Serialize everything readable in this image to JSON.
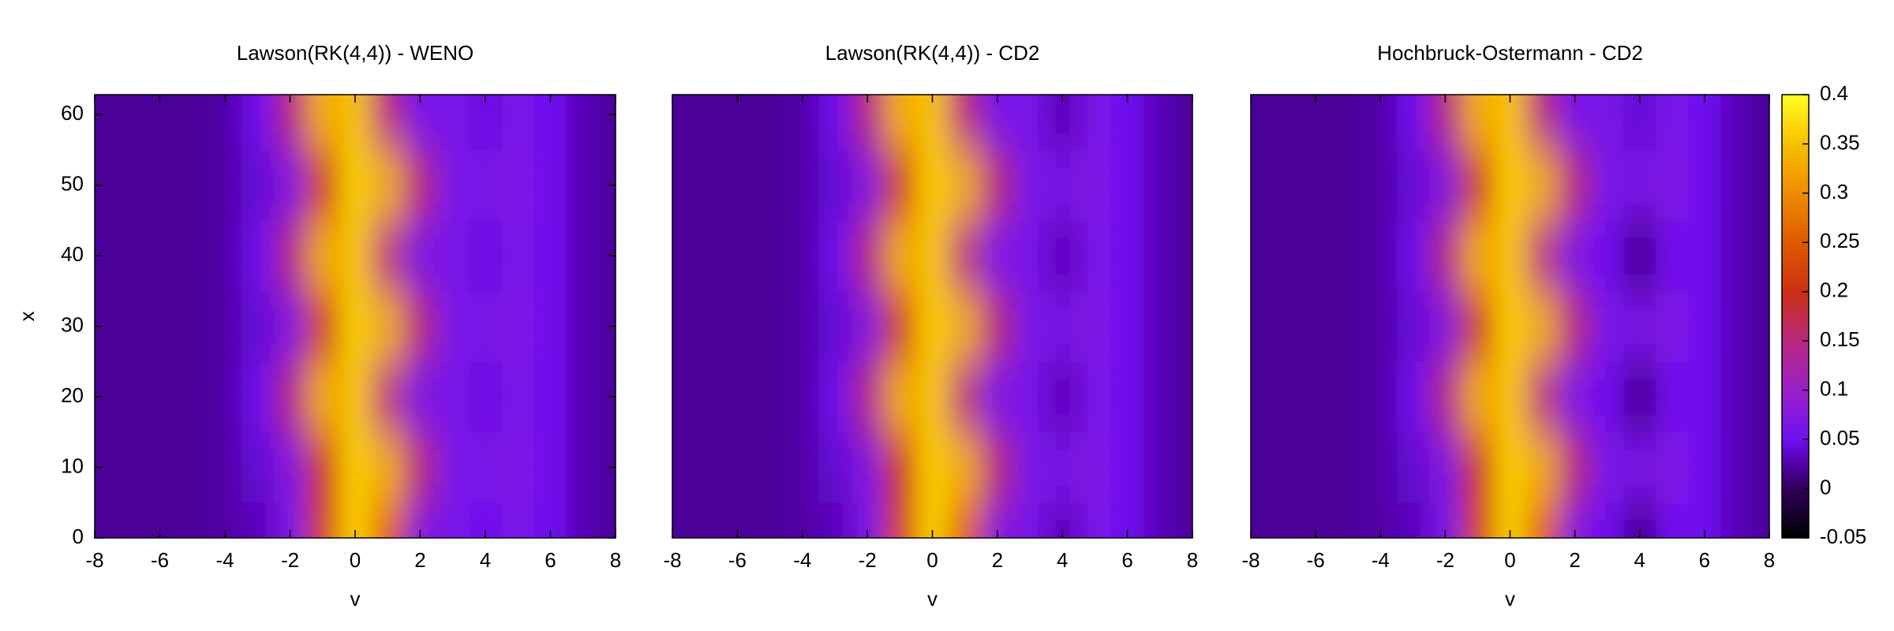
{
  "chart_data": [
    {
      "type": "heatmap",
      "title": "Lawson(RK(4,4)) - WENO",
      "x_label": "v",
      "y_label": "x",
      "x": [
        -8,
        -7,
        -6,
        -5,
        -4,
        -3,
        -2,
        -1,
        0,
        1,
        2,
        3,
        4,
        5,
        6,
        7,
        8
      ],
      "y": [
        0,
        10,
        20,
        30,
        40,
        50,
        60
      ],
      "z": [
        [
          0.02,
          0.02,
          0.02,
          0.02,
          0.025,
          0.03,
          0.06,
          0.22,
          0.36,
          0.25,
          0.07,
          0.06,
          0.05,
          0.06,
          0.05,
          0.03,
          0.02
        ],
        [
          0.02,
          0.02,
          0.02,
          0.02,
          0.025,
          0.04,
          0.07,
          0.2,
          0.36,
          0.33,
          0.16,
          0.06,
          0.06,
          0.07,
          0.05,
          0.03,
          0.02
        ],
        [
          0.02,
          0.02,
          0.02,
          0.02,
          0.025,
          0.05,
          0.15,
          0.33,
          0.35,
          0.15,
          0.06,
          0.06,
          0.045,
          0.06,
          0.05,
          0.03,
          0.02
        ],
        [
          0.02,
          0.02,
          0.02,
          0.02,
          0.025,
          0.04,
          0.07,
          0.2,
          0.36,
          0.33,
          0.16,
          0.06,
          0.06,
          0.07,
          0.05,
          0.03,
          0.02
        ],
        [
          0.02,
          0.02,
          0.02,
          0.02,
          0.025,
          0.05,
          0.15,
          0.33,
          0.35,
          0.15,
          0.06,
          0.06,
          0.045,
          0.06,
          0.05,
          0.03,
          0.02
        ],
        [
          0.02,
          0.02,
          0.02,
          0.02,
          0.025,
          0.04,
          0.07,
          0.2,
          0.36,
          0.33,
          0.16,
          0.06,
          0.06,
          0.07,
          0.05,
          0.03,
          0.02
        ],
        [
          0.02,
          0.02,
          0.02,
          0.02,
          0.025,
          0.05,
          0.15,
          0.33,
          0.35,
          0.15,
          0.06,
          0.06,
          0.045,
          0.06,
          0.05,
          0.03,
          0.02
        ]
      ],
      "xlim": [
        -8,
        8
      ],
      "ylim": [
        0,
        62.83
      ],
      "xticks": [
        -8,
        -6,
        -4,
        -2,
        0,
        2,
        4,
        6,
        8
      ],
      "yticks": [
        0,
        10,
        20,
        30,
        40,
        50,
        60
      ]
    },
    {
      "type": "heatmap",
      "title": "Lawson(RK(4,4)) - CD2",
      "x_label": "v",
      "x": [
        -8,
        -7,
        -6,
        -5,
        -4,
        -3,
        -2,
        -1,
        0,
        1,
        2,
        3,
        4,
        5,
        6,
        7,
        8
      ],
      "y": [
        0,
        10,
        20,
        30,
        40,
        50,
        60
      ],
      "z": [
        [
          0.02,
          0.02,
          0.02,
          0.02,
          0.025,
          0.03,
          0.06,
          0.22,
          0.36,
          0.25,
          0.07,
          0.06,
          0.03,
          0.06,
          0.05,
          0.03,
          0.02
        ],
        [
          0.02,
          0.02,
          0.02,
          0.02,
          0.025,
          0.04,
          0.07,
          0.2,
          0.36,
          0.33,
          0.16,
          0.06,
          0.06,
          0.07,
          0.05,
          0.03,
          0.02
        ],
        [
          0.02,
          0.02,
          0.02,
          0.02,
          0.025,
          0.05,
          0.15,
          0.33,
          0.35,
          0.15,
          0.06,
          0.06,
          0.03,
          0.06,
          0.05,
          0.03,
          0.02
        ],
        [
          0.02,
          0.02,
          0.02,
          0.02,
          0.025,
          0.04,
          0.07,
          0.2,
          0.36,
          0.33,
          0.16,
          0.06,
          0.06,
          0.07,
          0.05,
          0.03,
          0.02
        ],
        [
          0.02,
          0.02,
          0.02,
          0.02,
          0.025,
          0.05,
          0.15,
          0.33,
          0.35,
          0.15,
          0.06,
          0.06,
          0.03,
          0.06,
          0.05,
          0.03,
          0.02
        ],
        [
          0.02,
          0.02,
          0.02,
          0.02,
          0.025,
          0.04,
          0.07,
          0.2,
          0.36,
          0.33,
          0.16,
          0.06,
          0.06,
          0.07,
          0.05,
          0.03,
          0.02
        ],
        [
          0.02,
          0.02,
          0.02,
          0.02,
          0.025,
          0.05,
          0.15,
          0.33,
          0.35,
          0.15,
          0.06,
          0.06,
          0.03,
          0.06,
          0.05,
          0.03,
          0.02
        ]
      ],
      "xlim": [
        -8,
        8
      ],
      "ylim": [
        0,
        62.83
      ],
      "xticks": [
        -8,
        -6,
        -4,
        -2,
        0,
        2,
        4,
        6,
        8
      ]
    },
    {
      "type": "heatmap",
      "title": "Hochbruck-Ostermann - CD2",
      "x_label": "v",
      "x": [
        -8,
        -7,
        -6,
        -5,
        -4,
        -3,
        -2,
        -1,
        0,
        1,
        2,
        3,
        4,
        5,
        6,
        7,
        8
      ],
      "y": [
        0,
        10,
        20,
        30,
        40,
        50,
        60
      ],
      "z": [
        [
          0.02,
          0.02,
          0.02,
          0.02,
          0.025,
          0.03,
          0.06,
          0.22,
          0.36,
          0.25,
          0.07,
          0.05,
          0.01,
          0.05,
          0.05,
          0.03,
          0.02
        ],
        [
          0.02,
          0.02,
          0.02,
          0.02,
          0.025,
          0.04,
          0.07,
          0.2,
          0.36,
          0.33,
          0.16,
          0.06,
          0.06,
          0.07,
          0.05,
          0.03,
          0.02
        ],
        [
          0.02,
          0.02,
          0.02,
          0.02,
          0.025,
          0.05,
          0.15,
          0.33,
          0.35,
          0.15,
          0.06,
          0.05,
          0.01,
          0.05,
          0.05,
          0.03,
          0.02
        ],
        [
          0.02,
          0.02,
          0.02,
          0.02,
          0.025,
          0.04,
          0.07,
          0.2,
          0.36,
          0.33,
          0.16,
          0.06,
          0.06,
          0.07,
          0.05,
          0.03,
          0.02
        ],
        [
          0.02,
          0.02,
          0.02,
          0.02,
          0.025,
          0.05,
          0.15,
          0.33,
          0.35,
          0.15,
          0.06,
          0.05,
          0.01,
          0.05,
          0.05,
          0.03,
          0.02
        ],
        [
          0.02,
          0.02,
          0.02,
          0.02,
          0.025,
          0.04,
          0.07,
          0.2,
          0.36,
          0.33,
          0.16,
          0.06,
          0.06,
          0.07,
          0.05,
          0.03,
          0.02
        ],
        [
          0.02,
          0.02,
          0.02,
          0.02,
          0.025,
          0.05,
          0.15,
          0.33,
          0.35,
          0.15,
          0.06,
          0.06,
          0.04,
          0.06,
          0.05,
          0.03,
          0.02
        ]
      ],
      "xlim": [
        -8,
        8
      ],
      "ylim": [
        0,
        62.83
      ],
      "xticks": [
        -8,
        -6,
        -4,
        -2,
        0,
        2,
        4,
        6,
        8
      ]
    }
  ],
  "colorbar": {
    "ylim": [
      -0.05,
      0.4
    ],
    "yticks": [
      -0.05,
      0,
      0.05,
      0.1,
      0.15,
      0.2,
      0.25,
      0.3,
      0.35,
      0.4
    ],
    "colorscale": [
      [
        -0.05,
        "#000000"
      ],
      [
        0,
        "#30005a"
      ],
      [
        0.025,
        "#5200a8"
      ],
      [
        0.05,
        "#7010f0"
      ],
      [
        0.1,
        "#9a20c8"
      ],
      [
        0.15,
        "#b82880"
      ],
      [
        0.2,
        "#cc3010"
      ],
      [
        0.25,
        "#e05a00"
      ],
      [
        0.3,
        "#ee8c00"
      ],
      [
        0.35,
        "#f8c000"
      ],
      [
        0.4,
        "#ffff20"
      ]
    ]
  }
}
